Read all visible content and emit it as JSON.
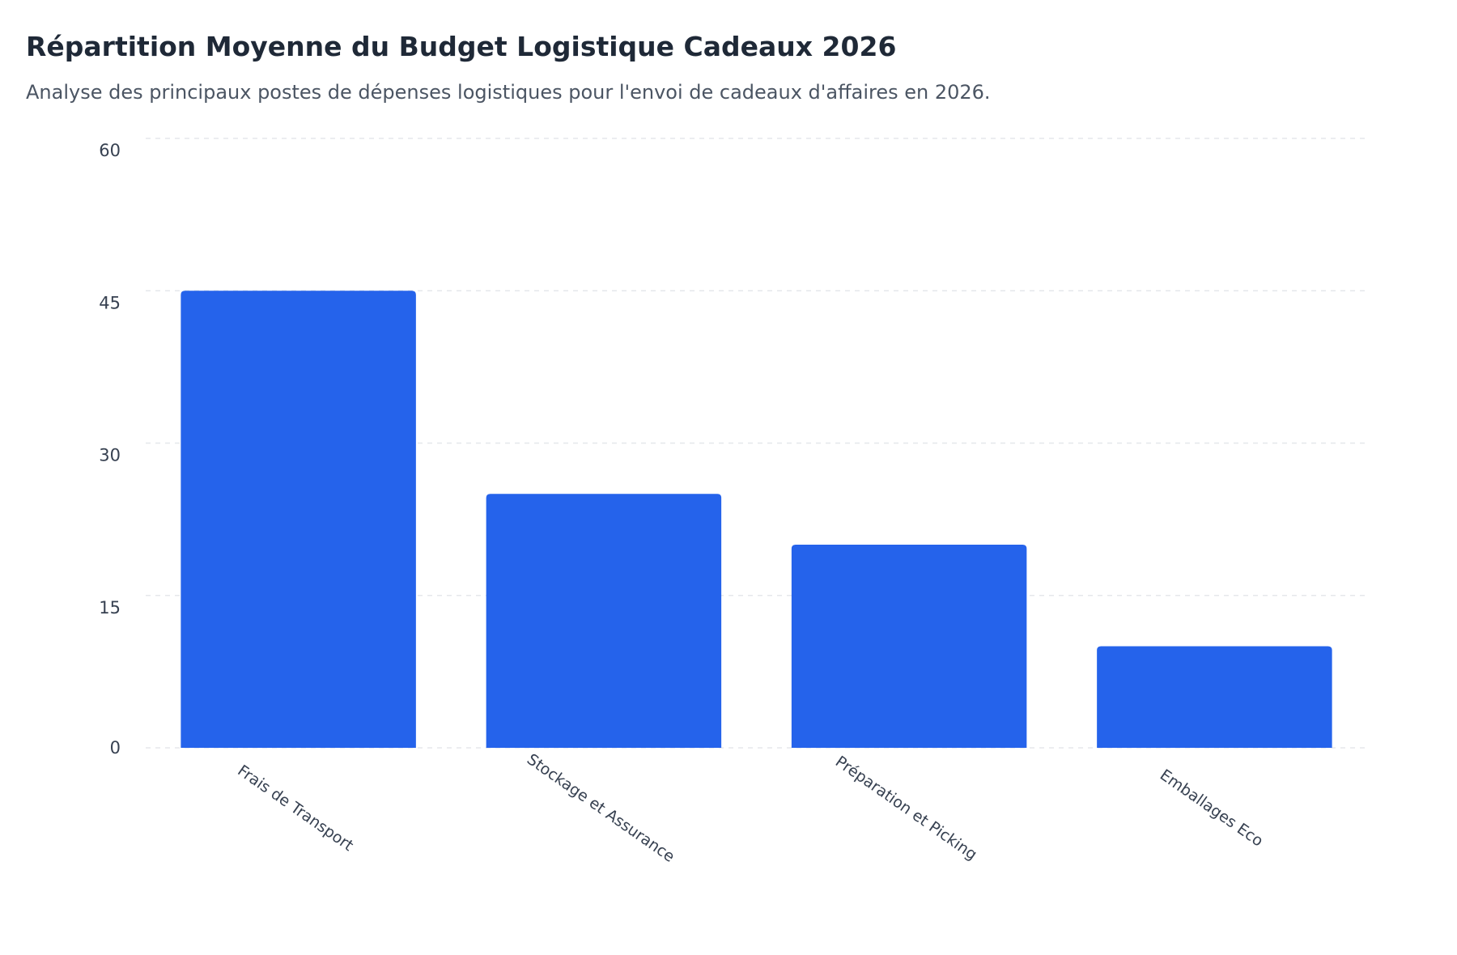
{
  "chart_data": {
    "type": "bar",
    "title": "Répartition Moyenne du Budget Logistique Cadeaux 2026",
    "subtitle": "Analyse des principaux postes de dépenses logistiques pour l'envoi de cadeaux d'affaires en 2026.",
    "categories": [
      "Frais de Transport",
      "Stockage et Assurance",
      "Préparation et Picking",
      "Emballages Eco"
    ],
    "values": [
      45,
      25,
      20,
      10
    ],
    "xlabel": "",
    "ylabel": "",
    "ylim": [
      0,
      60
    ],
    "yticks": [
      0,
      15,
      30,
      45,
      60
    ],
    "grid": "horizontal dashed",
    "legend": "none",
    "bar_color": "#2563eb"
  }
}
